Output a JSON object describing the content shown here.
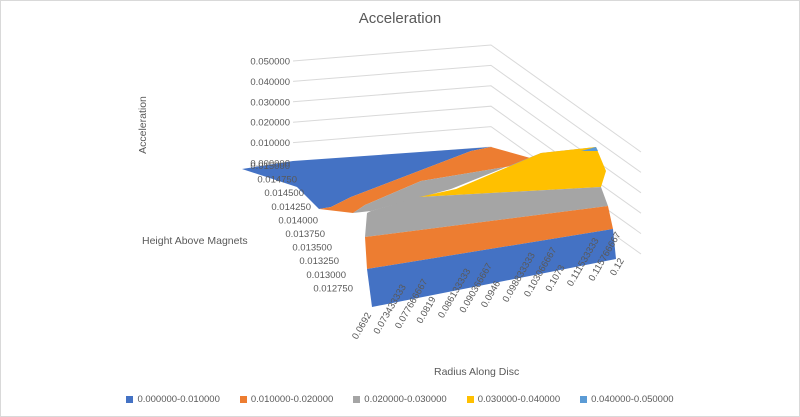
{
  "chart_data": {
    "type": "surface",
    "title": "Acceleration",
    "zlabel": "Acceleration",
    "ylabel": "Height Above Magnets",
    "xlabel": "Radius Along Disc",
    "z_ticks": [
      "0.000000",
      "0.010000",
      "0.020000",
      "0.030000",
      "0.040000",
      "0.050000"
    ],
    "y_ticks": [
      "0.015000",
      "0.014750",
      "0.014500",
      "0.014250",
      "0.014000",
      "0.013750",
      "0.013500",
      "0.013250",
      "0.013000",
      "0.012750"
    ],
    "x_ticks": [
      "0.0692",
      "0.073433333",
      "0.077666667",
      "0.0819",
      "0.086133333",
      "0.090366667",
      "0.0946",
      "0.098833333",
      "0.103066667",
      "0.1073",
      "0.111533333",
      "0.115766667",
      "0.12"
    ],
    "zlim": [
      0,
      0.05
    ],
    "legend_position": "bottom",
    "bands": [
      {
        "name": "0.000000-0.010000",
        "color": "#4472C4"
      },
      {
        "name": "0.010000-0.020000",
        "color": "#ED7D31"
      },
      {
        "name": "0.020000-0.030000",
        "color": "#A5A5A5"
      },
      {
        "name": "0.030000-0.040000",
        "color": "#FFC000"
      },
      {
        "name": "0.040000-0.050000",
        "color": "#5B9BD5"
      }
    ]
  }
}
